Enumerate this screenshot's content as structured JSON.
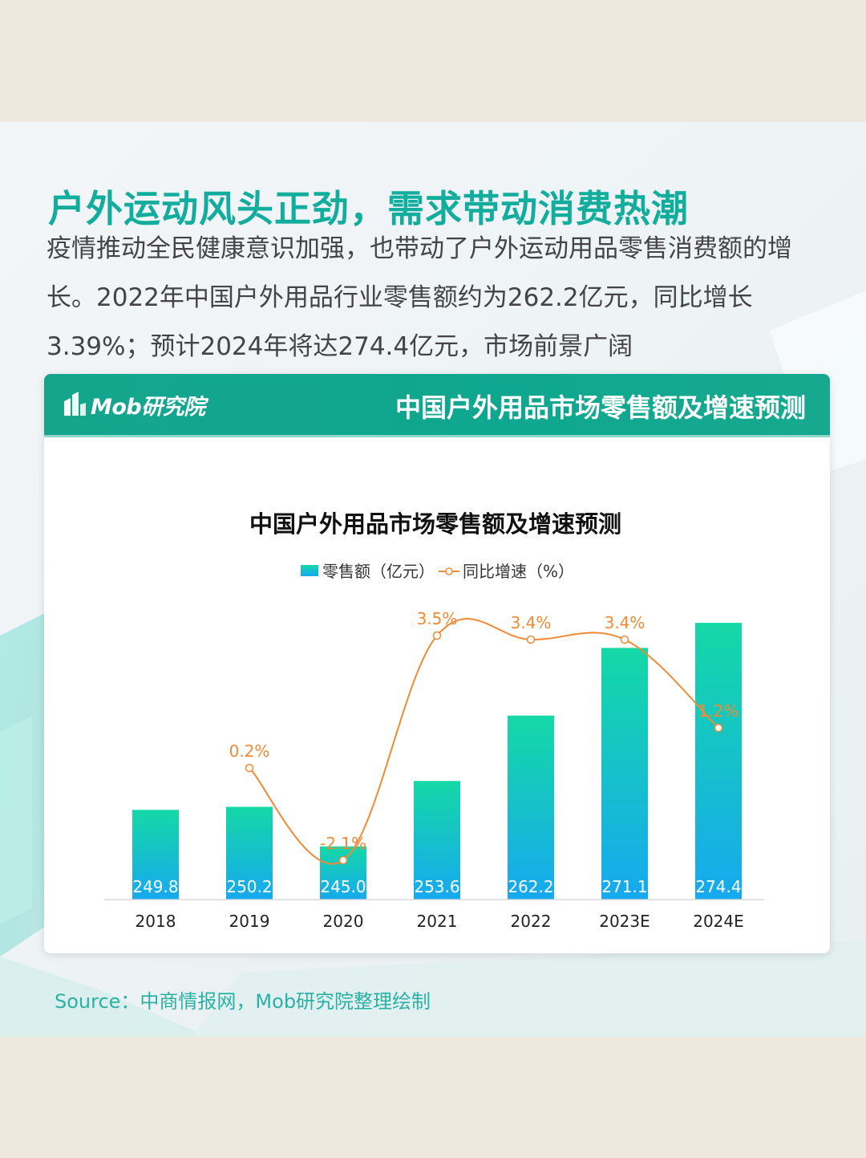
{
  "headline": "户外运动风头正劲，需求带动消费热潮",
  "intro": "疫情推动全民健康意识加强，也带动了户外运动用品零售消费额的增长。2022年中国户外用品行业零售额约为262.2亿元，同比增长3.39%；预计2024年将达274.4亿元，市场前景广阔",
  "panel": {
    "logo_text": "Mob研究院",
    "title": "中国户外用品市场零售额及增速预测"
  },
  "source": "Source：中商情报网，Mob研究院整理绘制",
  "colors": {
    "headline": "#12ad9c",
    "bar_top": "#15d8a6",
    "bar_bottom": "#16a9ef",
    "line": "#f08a35"
  },
  "chart_data": {
    "type": "bar",
    "title": "中国户外用品市场零售额及增速预测",
    "categories": [
      "2018",
      "2019",
      "2020",
      "2021",
      "2022",
      "2023E",
      "2024E"
    ],
    "series": [
      {
        "name": "零售额（亿元）",
        "type": "bar",
        "values": [
          249.8,
          250.2,
          245.0,
          253.6,
          262.2,
          271.1,
          274.4
        ],
        "labels": [
          "249.8",
          "250.2",
          "245.0",
          "253.6",
          "262.2",
          "271.1",
          "274.4"
        ]
      },
      {
        "name": "同比增速（%）",
        "type": "line",
        "values": [
          null,
          0.2,
          -2.1,
          3.5,
          3.4,
          3.4,
          1.2
        ],
        "labels": [
          "",
          "0.2%",
          "-2.1%",
          "3.5%",
          "3.4%",
          "3.4%",
          "1.2%"
        ]
      }
    ],
    "bar_axis_range": [
      238,
      278
    ],
    "line_axis_range": [
      -2.6,
      4.2
    ],
    "legend_position": "top-center",
    "grid": false
  }
}
